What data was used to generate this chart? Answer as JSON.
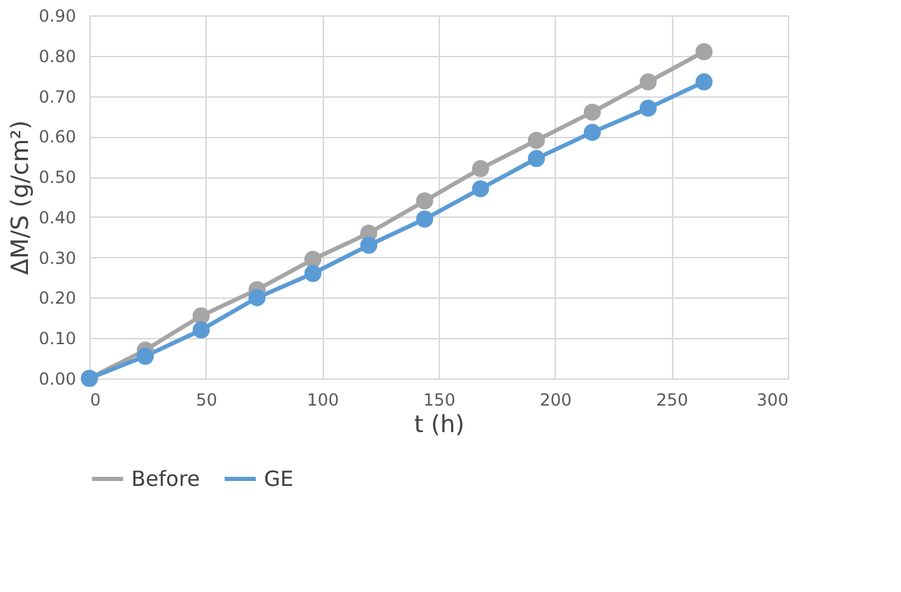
{
  "chart_data": {
    "type": "line",
    "xlabel": "t (h)",
    "ylabel": "ΔM/S (g/cm²)",
    "x": [
      0,
      24,
      48,
      72,
      96,
      120,
      144,
      168,
      192,
      216,
      240,
      264
    ],
    "series": [
      {
        "name": "Before",
        "color": "#a5a5a5",
        "values": [
          0,
          0.07,
          0.155,
          0.22,
          0.295,
          0.36,
          0.44,
          0.52,
          0.59,
          0.66,
          0.735,
          0.81
        ]
      },
      {
        "name": "GE",
        "color": "#5b9bd5",
        "values": [
          0,
          0.055,
          0.12,
          0.2,
          0.26,
          0.33,
          0.395,
          0.47,
          0.545,
          0.61,
          0.67,
          0.735
        ]
      }
    ],
    "xlim": [
      0,
      300
    ],
    "xticks": [
      0,
      50,
      100,
      150,
      200,
      250,
      300
    ],
    "ylim": [
      0,
      0.9
    ],
    "yticks": [
      {
        "value": 0,
        "label": "0.00"
      },
      {
        "value": 0.1,
        "label": "0.10"
      },
      {
        "value": 0.2,
        "label": "0.20"
      },
      {
        "value": 0.3,
        "label": "0.30"
      },
      {
        "value": 0.4,
        "label": "0.40"
      },
      {
        "value": 0.5,
        "label": "0.50"
      },
      {
        "value": 0.6,
        "label": "0.60"
      },
      {
        "value": 0.7,
        "label": "0.70"
      },
      {
        "value": 0.8,
        "label": "0.80"
      },
      {
        "value": 0.9,
        "label": "0.90"
      }
    ],
    "grid": true,
    "legend": "bottom",
    "marker": "circle",
    "line_style": "solid"
  }
}
